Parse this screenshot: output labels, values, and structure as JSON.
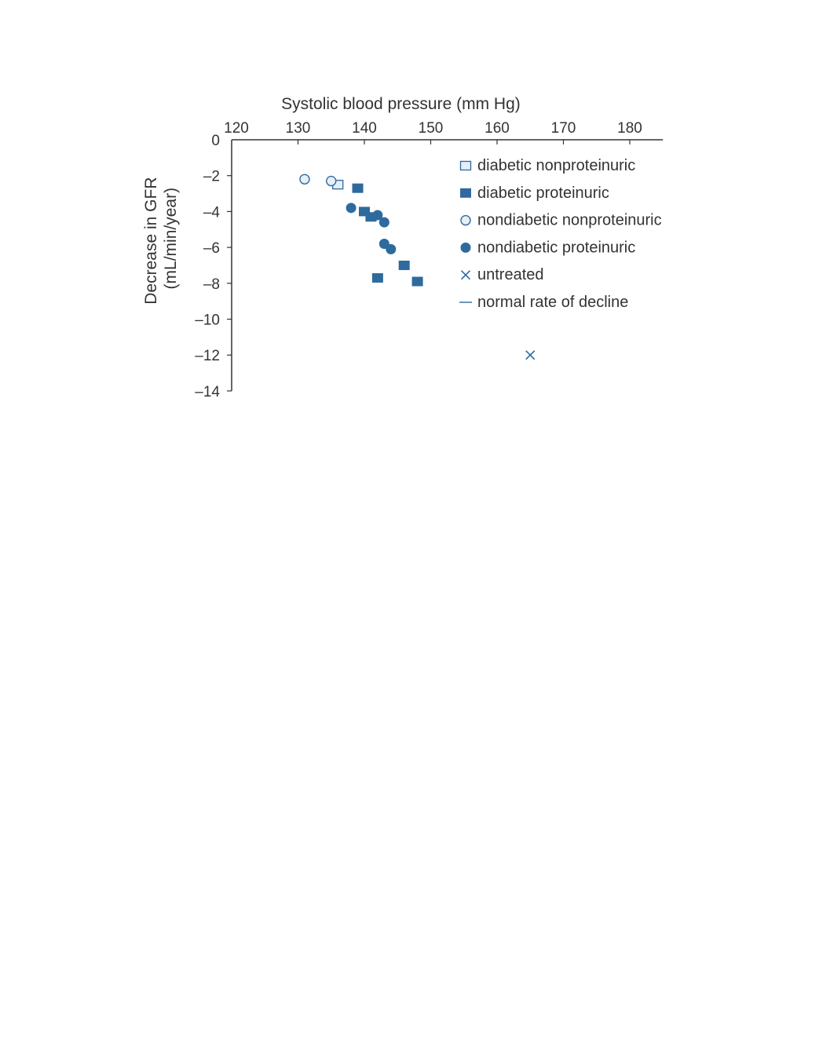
{
  "chart_data": {
    "type": "scatter",
    "xlabel": "Systolic blood pressure (mm Hg)",
    "ylabel_lines": [
      "Decrease in GFR",
      "(mL/min/year)"
    ],
    "xlim": [
      120,
      185
    ],
    "ylim": [
      -14,
      0
    ],
    "x_axis_position": "top",
    "grid": false,
    "legend_position": "top-right",
    "x_ticks": [
      120,
      130,
      140,
      150,
      160,
      170,
      180
    ],
    "x_tick_labels": [
      "120",
      "130",
      "140",
      "150",
      "160",
      "170",
      "180"
    ],
    "y_ticks": [
      0,
      -2,
      -4,
      -6,
      -8,
      -10,
      -12,
      -14
    ],
    "y_tick_labels": [
      "0",
      "–2",
      "–4",
      "–6",
      "–8",
      "–10",
      "–12",
      "–14"
    ],
    "colors": {
      "dark": "#2e6a9e",
      "light_fill": "#e6eef7",
      "axis": "#333333"
    },
    "series": [
      {
        "name": "diabetic nonproteinuric",
        "marker": "square-open",
        "points": [
          {
            "x": 136,
            "y": -2.5
          }
        ]
      },
      {
        "name": "diabetic proteinuric",
        "marker": "square-filled",
        "points": [
          {
            "x": 139,
            "y": -2.7
          },
          {
            "x": 140,
            "y": -4.0
          },
          {
            "x": 141,
            "y": -4.3
          },
          {
            "x": 146,
            "y": -7.0
          },
          {
            "x": 142,
            "y": -7.7
          },
          {
            "x": 148,
            "y": -7.9
          }
        ]
      },
      {
        "name": "nondiabetic nonproteinuric",
        "marker": "circle-open",
        "points": [
          {
            "x": 131,
            "y": -2.2
          },
          {
            "x": 135,
            "y": -2.3
          }
        ]
      },
      {
        "name": "nondiabetic proteinuric",
        "marker": "circle-filled",
        "points": [
          {
            "x": 138,
            "y": -3.8
          },
          {
            "x": 142,
            "y": -4.2
          },
          {
            "x": 143,
            "y": -4.6
          },
          {
            "x": 143,
            "y": -5.8
          },
          {
            "x": 144,
            "y": -6.1
          }
        ]
      },
      {
        "name": "untreated",
        "marker": "x",
        "points": [
          {
            "x": 165,
            "y": -12.0
          }
        ]
      },
      {
        "name": "normal rate of decline",
        "marker": "line",
        "points": []
      }
    ]
  }
}
